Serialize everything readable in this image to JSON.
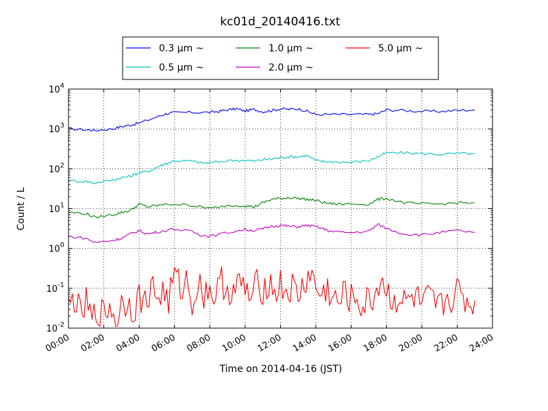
{
  "chart_data": {
    "type": "line",
    "title": "kc01d_20140416.txt",
    "xlabel": "Time on 2014-04-16 (JST)",
    "ylabel": "Count / L",
    "yscale": "log",
    "ylim": [
      0.01,
      10000
    ],
    "xlim": [
      "00:00",
      "24:00"
    ],
    "x_ticks": [
      "00:00",
      "02:00",
      "04:00",
      "06:00",
      "08:00",
      "10:00",
      "12:00",
      "14:00",
      "16:00",
      "18:00",
      "20:00",
      "22:00",
      "24:00"
    ],
    "y_ticks": [
      {
        "base": "10",
        "exp": "-2"
      },
      {
        "base": "10",
        "exp": "-1"
      },
      {
        "base": "10",
        "exp": "0"
      },
      {
        "base": "10",
        "exp": "1"
      },
      {
        "base": "10",
        "exp": "2"
      },
      {
        "base": "10",
        "exp": "3"
      },
      {
        "base": "10",
        "exp": "4"
      }
    ],
    "grid": true,
    "legend_position": "top",
    "series": [
      {
        "name": "0.3 μm ~",
        "color": "#0000ff",
        "points": [
          [
            "00:00",
            1000
          ],
          [
            "01:00",
            950
          ],
          [
            "01:30",
            920
          ],
          [
            "02:30",
            1000
          ],
          [
            "03:00",
            1150
          ],
          [
            "03:30",
            1250
          ],
          [
            "04:00",
            1400
          ],
          [
            "05:00",
            2000
          ],
          [
            "05:30",
            2400
          ],
          [
            "06:00",
            2550
          ],
          [
            "07:00",
            2600
          ],
          [
            "08:00",
            2600
          ],
          [
            "08:30",
            2750
          ],
          [
            "09:00",
            3000
          ],
          [
            "09:30",
            3200
          ],
          [
            "10:00",
            2800
          ],
          [
            "10:30",
            3100
          ],
          [
            "11:00",
            2700
          ],
          [
            "11:30",
            2900
          ],
          [
            "12:00",
            3200
          ],
          [
            "12:30",
            3100
          ],
          [
            "13:00",
            3200
          ],
          [
            "13:30",
            2800
          ],
          [
            "14:00",
            2300
          ],
          [
            "15:00",
            2300
          ],
          [
            "16:00",
            2300
          ],
          [
            "17:00",
            2300
          ],
          [
            "17:30",
            2400
          ],
          [
            "18:00",
            3000
          ],
          [
            "19:00",
            2900
          ],
          [
            "20:00",
            2750
          ],
          [
            "21:00",
            2750
          ],
          [
            "22:00",
            2900
          ],
          [
            "23:00",
            3000
          ]
        ]
      },
      {
        "name": "0.5 μm ~",
        "color": "#00bfbf",
        "points": [
          [
            "00:00",
            50
          ],
          [
            "01:00",
            48
          ],
          [
            "01:30",
            44
          ],
          [
            "02:30",
            52
          ],
          [
            "03:00",
            60
          ],
          [
            "03:30",
            65
          ],
          [
            "04:00",
            80
          ],
          [
            "04:30",
            85
          ],
          [
            "05:00",
            110
          ],
          [
            "05:30",
            135
          ],
          [
            "06:00",
            160
          ],
          [
            "07:00",
            155
          ],
          [
            "07:30",
            140
          ],
          [
            "08:00",
            140
          ],
          [
            "09:00",
            160
          ],
          [
            "10:00",
            165
          ],
          [
            "10:30",
            155
          ],
          [
            "11:00",
            170
          ],
          [
            "11:30",
            175
          ],
          [
            "12:00",
            190
          ],
          [
            "12:30",
            200
          ],
          [
            "13:00",
            200
          ],
          [
            "13:30",
            215
          ],
          [
            "14:00",
            160
          ],
          [
            "14:30",
            150
          ],
          [
            "15:00",
            150
          ],
          [
            "16:00",
            145
          ],
          [
            "17:00",
            160
          ],
          [
            "17:30",
            200
          ],
          [
            "18:00",
            250
          ],
          [
            "19:00",
            250
          ],
          [
            "20:00",
            240
          ],
          [
            "21:00",
            230
          ],
          [
            "22:00",
            240
          ],
          [
            "23:00",
            240
          ]
        ]
      },
      {
        "name": "1.0 μm ~",
        "color": "#008000",
        "points": [
          [
            "00:00",
            8
          ],
          [
            "01:00",
            7.5
          ],
          [
            "01:30",
            6
          ],
          [
            "02:30",
            7
          ],
          [
            "03:00",
            8
          ],
          [
            "03:30",
            9
          ],
          [
            "04:00",
            13
          ],
          [
            "04:30",
            11
          ],
          [
            "05:00",
            12
          ],
          [
            "06:00",
            13
          ],
          [
            "07:00",
            12
          ],
          [
            "07:30",
            11
          ],
          [
            "08:00",
            10
          ],
          [
            "09:00",
            12
          ],
          [
            "10:00",
            12
          ],
          [
            "10:30",
            11
          ],
          [
            "11:00",
            14
          ],
          [
            "11:30",
            17
          ],
          [
            "12:00",
            18
          ],
          [
            "12:30",
            19
          ],
          [
            "13:00",
            18
          ],
          [
            "13:30",
            17
          ],
          [
            "14:00",
            16
          ],
          [
            "14:30",
            14
          ],
          [
            "15:00",
            13
          ],
          [
            "16:00",
            13
          ],
          [
            "17:00",
            13
          ],
          [
            "17:30",
            17
          ],
          [
            "18:00",
            18
          ],
          [
            "19:00",
            14
          ],
          [
            "20:00",
            13
          ],
          [
            "21:00",
            13
          ],
          [
            "22:00",
            14
          ],
          [
            "23:00",
            14
          ]
        ]
      },
      {
        "name": "2.0 μm ~",
        "color": "#bf00bf",
        "points": [
          [
            "00:00",
            2
          ],
          [
            "01:00",
            1.8
          ],
          [
            "01:30",
            1.4
          ],
          [
            "02:30",
            1.6
          ],
          [
            "03:00",
            1.8
          ],
          [
            "03:30",
            2.3
          ],
          [
            "04:00",
            2.8
          ],
          [
            "04:30",
            2.3
          ],
          [
            "05:00",
            2.6
          ],
          [
            "06:00",
            3.1
          ],
          [
            "07:00",
            2.6
          ],
          [
            "07:30",
            2.2
          ],
          [
            "08:00",
            2.0
          ],
          [
            "09:00",
            2.5
          ],
          [
            "10:00",
            3.0
          ],
          [
            "10:30",
            2.8
          ],
          [
            "11:00",
            3.1
          ],
          [
            "11:30",
            3.6
          ],
          [
            "12:00",
            3.8
          ],
          [
            "12:30",
            3.6
          ],
          [
            "13:00",
            3.5
          ],
          [
            "13:30",
            3.8
          ],
          [
            "14:00",
            3.5
          ],
          [
            "14:30",
            3.0
          ],
          [
            "15:00",
            2.6
          ],
          [
            "16:00",
            2.5
          ],
          [
            "17:00",
            2.7
          ],
          [
            "17:30",
            4.0
          ],
          [
            "18:00",
            3.2
          ],
          [
            "19:00",
            2.3
          ],
          [
            "20:00",
            2.2
          ],
          [
            "21:00",
            2.5
          ],
          [
            "22:00",
            2.8
          ],
          [
            "23:00",
            2.5
          ]
        ]
      },
      {
        "name": "5.0 μm ~",
        "color": "#ff0000",
        "points": [
          [
            "00:00",
            0.03
          ],
          [
            "00:20",
            0.06
          ],
          [
            "00:40",
            0.02
          ],
          [
            "01:00",
            0.04
          ],
          [
            "01:20",
            0.015
          ],
          [
            "01:40",
            0.03
          ],
          [
            "02:00",
            0.02
          ],
          [
            "02:20",
            0.04
          ],
          [
            "02:40",
            0.015
          ],
          [
            "03:00",
            0.04
          ],
          [
            "03:20",
            0.05
          ],
          [
            "03:40",
            0.03
          ],
          [
            "04:00",
            0.06
          ],
          [
            "04:20",
            0.04
          ],
          [
            "04:40",
            0.12
          ],
          [
            "05:00",
            0.06
          ],
          [
            "05:20",
            0.08
          ],
          [
            "05:40",
            0.05
          ],
          [
            "06:00",
            0.2
          ],
          [
            "06:20",
            0.1
          ],
          [
            "06:40",
            0.15
          ],
          [
            "07:00",
            0.05
          ],
          [
            "07:20",
            0.12
          ],
          [
            "07:40",
            0.08
          ],
          [
            "08:00",
            0.1
          ],
          [
            "08:20",
            0.06
          ],
          [
            "08:40",
            0.15
          ],
          [
            "09:00",
            0.1
          ],
          [
            "09:20",
            0.08
          ],
          [
            "09:40",
            0.12
          ],
          [
            "10:00",
            0.1
          ],
          [
            "10:20",
            0.05
          ],
          [
            "10:40",
            0.12
          ],
          [
            "11:00",
            0.1
          ],
          [
            "11:20",
            0.15
          ],
          [
            "11:40",
            0.08
          ],
          [
            "12:00",
            0.12
          ],
          [
            "12:20",
            0.08
          ],
          [
            "12:40",
            0.1
          ],
          [
            "13:00",
            0.06
          ],
          [
            "13:20",
            0.12
          ],
          [
            "13:40",
            0.25
          ],
          [
            "14:00",
            0.1
          ],
          [
            "14:20",
            0.06
          ],
          [
            "14:40",
            0.1
          ],
          [
            "15:00",
            0.05
          ],
          [
            "15:20",
            0.04
          ],
          [
            "15:40",
            0.08
          ],
          [
            "16:00",
            0.05
          ],
          [
            "16:20",
            0.06
          ],
          [
            "16:40",
            0.03
          ],
          [
            "17:00",
            0.05
          ],
          [
            "17:20",
            0.06
          ],
          [
            "17:40",
            0.2
          ],
          [
            "18:00",
            0.08
          ],
          [
            "18:20",
            0.05
          ],
          [
            "18:40",
            0.06
          ],
          [
            "19:00",
            0.04
          ],
          [
            "19:20",
            0.05
          ],
          [
            "19:40",
            0.06
          ],
          [
            "20:00",
            0.03
          ],
          [
            "20:20",
            0.05
          ],
          [
            "20:40",
            0.04
          ],
          [
            "21:00",
            0.03
          ],
          [
            "21:20",
            0.05
          ],
          [
            "21:40",
            0.06
          ],
          [
            "22:00",
            0.08
          ],
          [
            "22:20",
            0.06
          ],
          [
            "22:40",
            0.04
          ],
          [
            "23:00",
            0.05
          ]
        ]
      }
    ]
  }
}
